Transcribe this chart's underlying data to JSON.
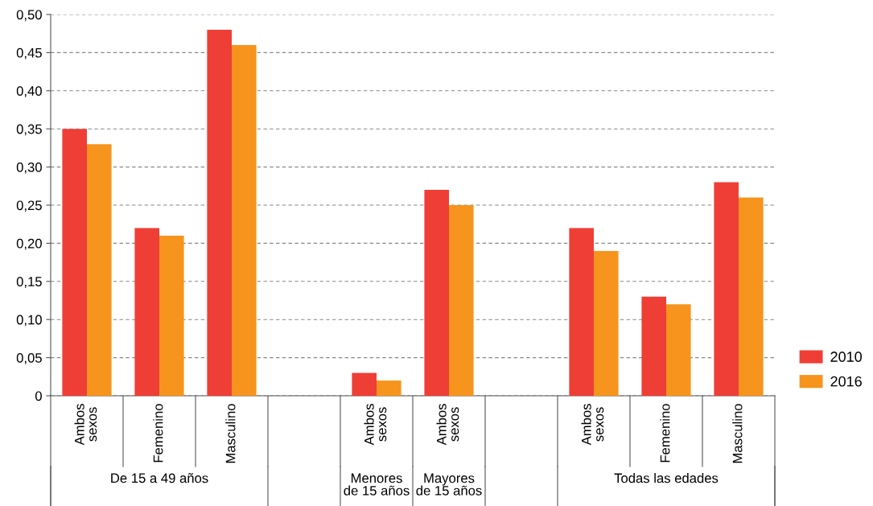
{
  "chart_data": {
    "type": "bar",
    "categories": [
      "Ambos\nsexos",
      "Femenino",
      "Masculino",
      null,
      "Ambos\nsexos",
      "Ambos\nsexos",
      null,
      "Ambos\nsexos",
      "Femenino",
      "Masculino"
    ],
    "series": [
      {
        "name": "2010",
        "color": "#ef3e36",
        "values": [
          0.35,
          0.22,
          0.48,
          null,
          0.03,
          0.27,
          null,
          0.22,
          0.13,
          0.28
        ]
      },
      {
        "name": "2016",
        "color": "#f7941d",
        "values": [
          0.33,
          0.21,
          0.46,
          null,
          0.02,
          0.25,
          null,
          0.19,
          0.12,
          0.26
        ]
      }
    ],
    "ylim": [
      0,
      0.5
    ],
    "yticks": [
      0,
      {
        "value": 0.05,
        "label": "0,05"
      },
      {
        "value": 0.1,
        "label": "0,10"
      },
      {
        "value": 0.15,
        "label": "0,15"
      },
      {
        "value": 0.2,
        "label": "0,20"
      },
      {
        "value": 0.25,
        "label": "0,25"
      },
      {
        "value": 0.3,
        "label": "0,30"
      },
      {
        "value": 0.35,
        "label": "0,35"
      },
      {
        "value": 0.4,
        "label": "0,40"
      },
      {
        "value": 0.45,
        "label": "0,45"
      },
      {
        "value": 0.5,
        "label": "0,50"
      }
    ],
    "grid": "y",
    "legend": "bottom right",
    "annotations": [
      "De 15 a 49 años",
      "Menores\nde 15 años",
      "Mayores\nde 15 años",
      "Todas las edades"
    ]
  }
}
